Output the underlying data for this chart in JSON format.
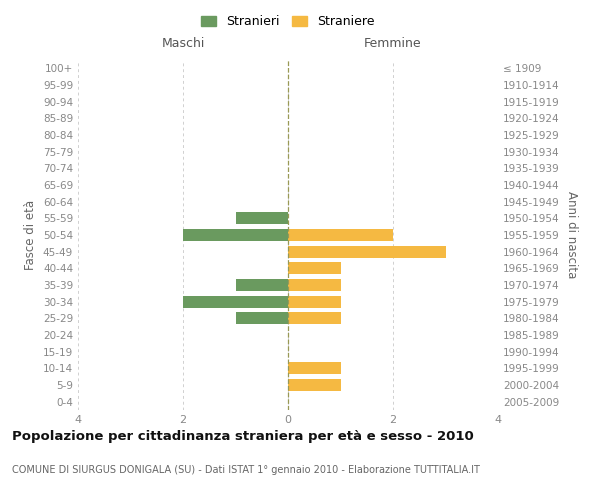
{
  "age_groups": [
    "100+",
    "95-99",
    "90-94",
    "85-89",
    "80-84",
    "75-79",
    "70-74",
    "65-69",
    "60-64",
    "55-59",
    "50-54",
    "45-49",
    "40-44",
    "35-39",
    "30-34",
    "25-29",
    "20-24",
    "15-19",
    "10-14",
    "5-9",
    "0-4"
  ],
  "birth_years": [
    "≤ 1909",
    "1910-1914",
    "1915-1919",
    "1920-1924",
    "1925-1929",
    "1930-1934",
    "1935-1939",
    "1940-1944",
    "1945-1949",
    "1950-1954",
    "1955-1959",
    "1960-1964",
    "1965-1969",
    "1970-1974",
    "1975-1979",
    "1980-1984",
    "1985-1989",
    "1990-1994",
    "1995-1999",
    "2000-2004",
    "2005-2009"
  ],
  "maschi": [
    0,
    0,
    0,
    0,
    0,
    0,
    0,
    0,
    0,
    1,
    2,
    0,
    0,
    1,
    2,
    1,
    0,
    0,
    0,
    0,
    0
  ],
  "femmine": [
    0,
    0,
    0,
    0,
    0,
    0,
    0,
    0,
    0,
    0,
    2,
    3,
    1,
    1,
    1,
    1,
    0,
    0,
    1,
    1,
    0
  ],
  "color_maschi": "#6a9a5f",
  "color_femmine": "#f5b942",
  "xlim": 4,
  "title": "Popolazione per cittadinanza straniera per età e sesso - 2010",
  "subtitle": "COMUNE DI SIURGUS DONIGALA (SU) - Dati ISTAT 1° gennaio 2010 - Elaborazione TUTTITALIA.IT",
  "ylabel_left": "Fasce di età",
  "ylabel_right": "Anni di nascita",
  "header_maschi": "Maschi",
  "header_femmine": "Femmine",
  "legend_maschi": "Stranieri",
  "legend_femmine": "Straniere",
  "bg_color": "#ffffff",
  "grid_color": "#d0d0d0",
  "bar_height": 0.72
}
